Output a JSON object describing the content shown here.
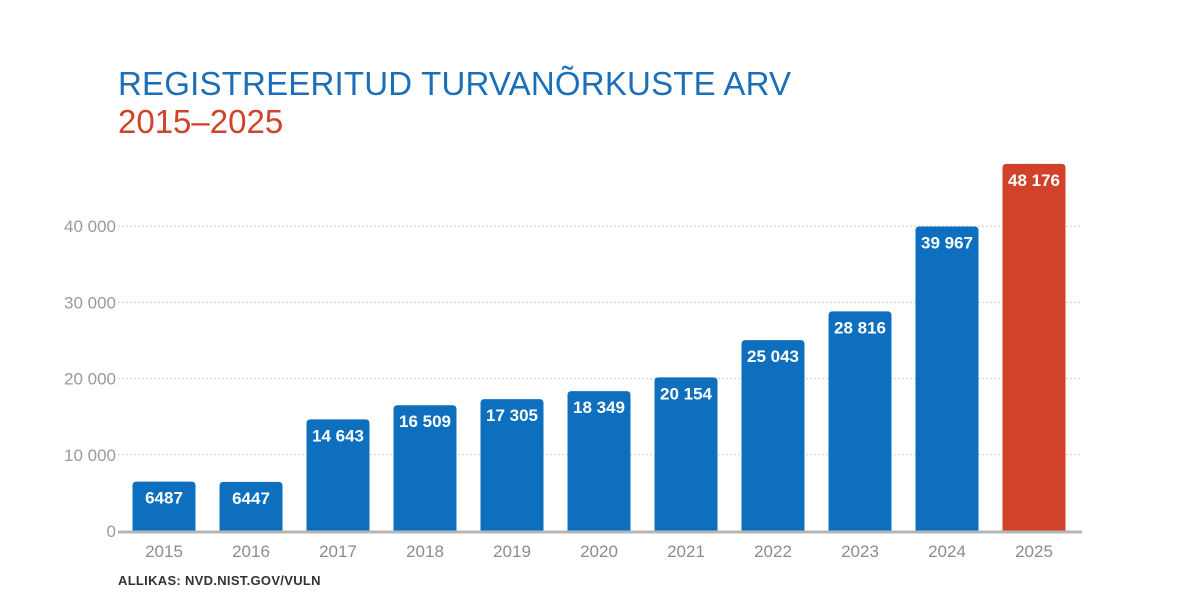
{
  "chart_data": {
    "type": "bar",
    "title": "REGISTREERITUD TURVANÕRKUSTE ARV",
    "subtitle": "2015–2025",
    "categories": [
      "2015",
      "2016",
      "2017",
      "2018",
      "2019",
      "2020",
      "2021",
      "2022",
      "2023",
      "2024",
      "2025"
    ],
    "values": [
      6487,
      6447,
      14643,
      16509,
      17305,
      18349,
      20154,
      25043,
      28816,
      39967,
      48176
    ],
    "value_labels": [
      "6487",
      "6447",
      "14 643",
      "16 509",
      "17 305",
      "18 349",
      "20 154",
      "25 043",
      "28 816",
      "39 967",
      "48 176"
    ],
    "y_ticks": [
      0,
      10000,
      20000,
      30000,
      40000
    ],
    "y_tick_labels": [
      "0",
      "10 000",
      "20 000",
      "30 000",
      "40 000"
    ],
    "ylim": [
      0,
      50000
    ],
    "grid": true,
    "colors": {
      "bar": "#0e6fbe",
      "highlight": "#d2412a",
      "title": "#1a6fb8",
      "subtitle": "#d2412a"
    },
    "highlight_index": 10
  },
  "source": "ALLIKAS: NVD.NIST.GOV/VULN"
}
